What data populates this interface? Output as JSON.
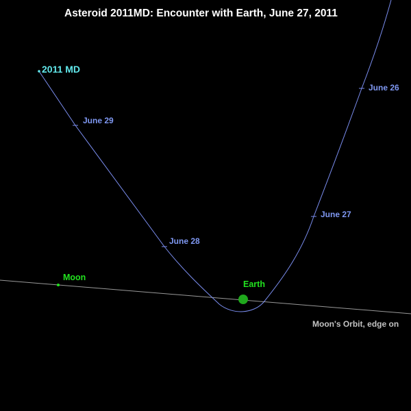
{
  "title": "Asteroid 2011MD:  Encounter with Earth, June 27, 2011",
  "asteroid": {
    "label": "2011 MD",
    "color": "#61e7ea"
  },
  "trajectory": {
    "color": "#7b8ef0",
    "date_labels": [
      "June 26",
      "June 27",
      "June 28",
      "June 29"
    ]
  },
  "earth": {
    "label": "Earth",
    "color": "#1fa81c"
  },
  "moon": {
    "label": "Moon",
    "color": "#22e31f"
  },
  "moon_orbit": {
    "label": "Moon's Orbit, edge on",
    "color": "#9a9a9a"
  },
  "colors": {
    "background": "#000000",
    "title": "#ffffff",
    "date_labels": "#7f98f2",
    "body_labels": "#22e31f"
  }
}
